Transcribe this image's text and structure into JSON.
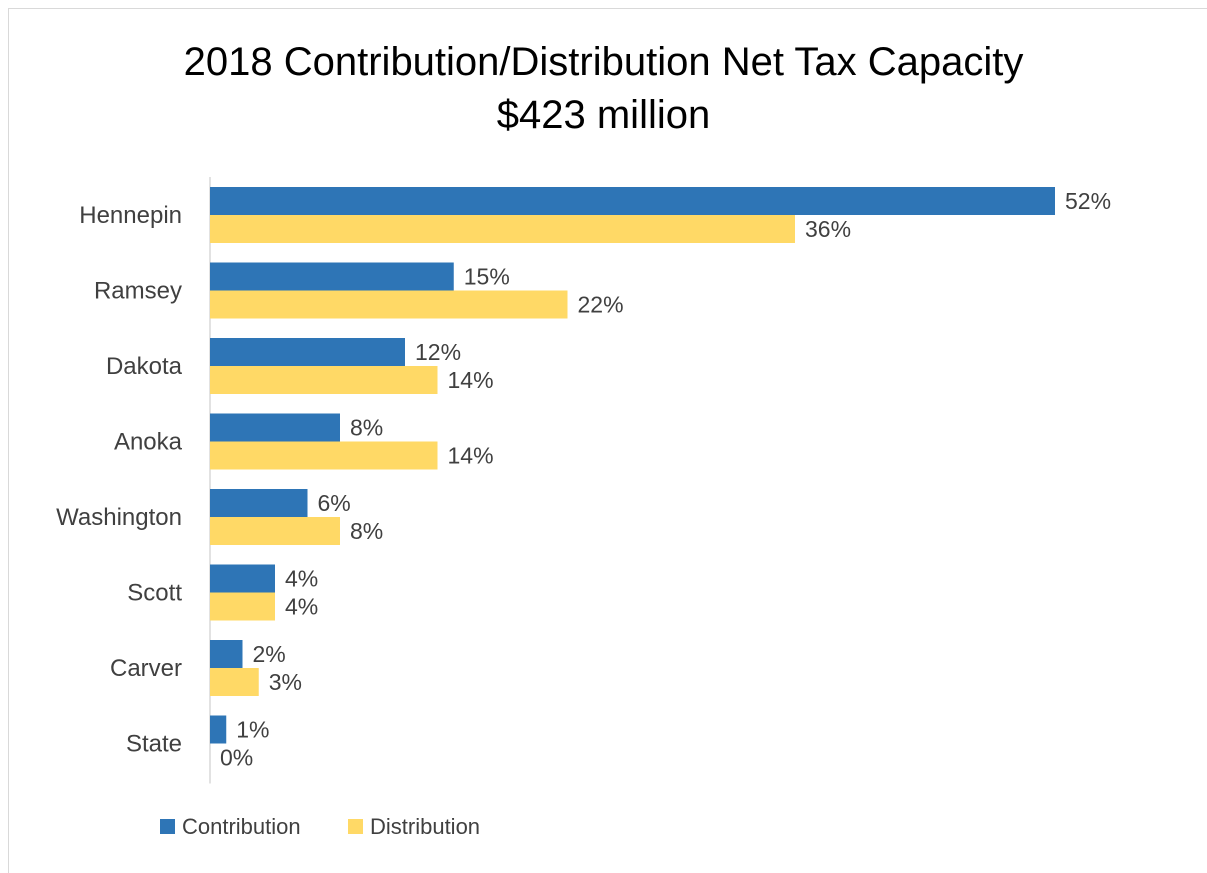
{
  "chart_data": {
    "type": "bar",
    "orientation": "horizontal",
    "title": "2018 Contribution/Distribution Net Tax Capacity",
    "subtitle": "$423 million",
    "categories": [
      "Hennepin",
      "Ramsey",
      "Dakota",
      "Anoka",
      "Washington",
      "Scott",
      "Carver",
      "State"
    ],
    "series": [
      {
        "name": "Contribution",
        "color": "#2e75b6",
        "values": [
          52,
          15,
          12,
          8,
          6,
          4,
          2,
          1
        ],
        "labels": [
          "52%",
          "15%",
          "12%",
          "8%",
          "6%",
          "4%",
          "2%",
          "1%"
        ]
      },
      {
        "name": "Distribution",
        "color": "#ffd966",
        "values": [
          36,
          22,
          14,
          14,
          8,
          4,
          3,
          0
        ],
        "labels": [
          "36%",
          "22%",
          "14%",
          "14%",
          "8%",
          "4%",
          "3%",
          "0%"
        ]
      }
    ],
    "xlim": [
      0,
      60
    ],
    "unit": "%",
    "grid": false,
    "legend": "bottom-left"
  }
}
